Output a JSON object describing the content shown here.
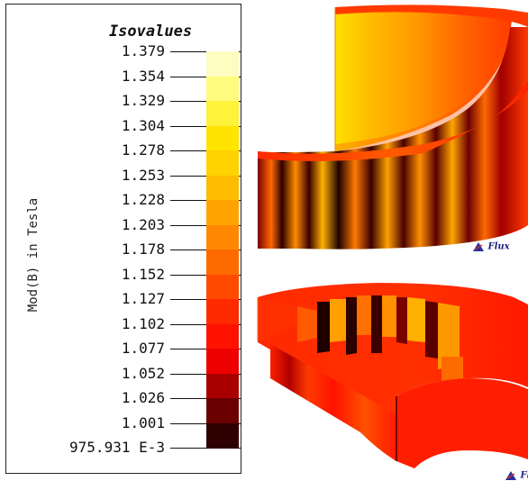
{
  "legend": {
    "title": "Isovalues",
    "ylabel": "Mod(B) in Tesla",
    "ticks": [
      "1.379",
      "1.354",
      "1.329",
      "1.304",
      "1.278",
      "1.253",
      "1.228",
      "1.203",
      "1.178",
      "1.152",
      "1.127",
      "1.102",
      "1.077",
      "1.052",
      "1.026",
      "1.001",
      "975.931 E-3"
    ],
    "colors": [
      "#fffcc2",
      "#fffb7e",
      "#fff23a",
      "#ffe400",
      "#ffd200",
      "#ffbb00",
      "#ffa300",
      "#ff8800",
      "#ff6a00",
      "#ff4a00",
      "#ff2a00",
      "#ff1200",
      "#ee0000",
      "#a80000",
      "#6a0000",
      "#2e0000"
    ]
  },
  "logos": {
    "top": "Flux",
    "bottom": "Flux"
  }
}
